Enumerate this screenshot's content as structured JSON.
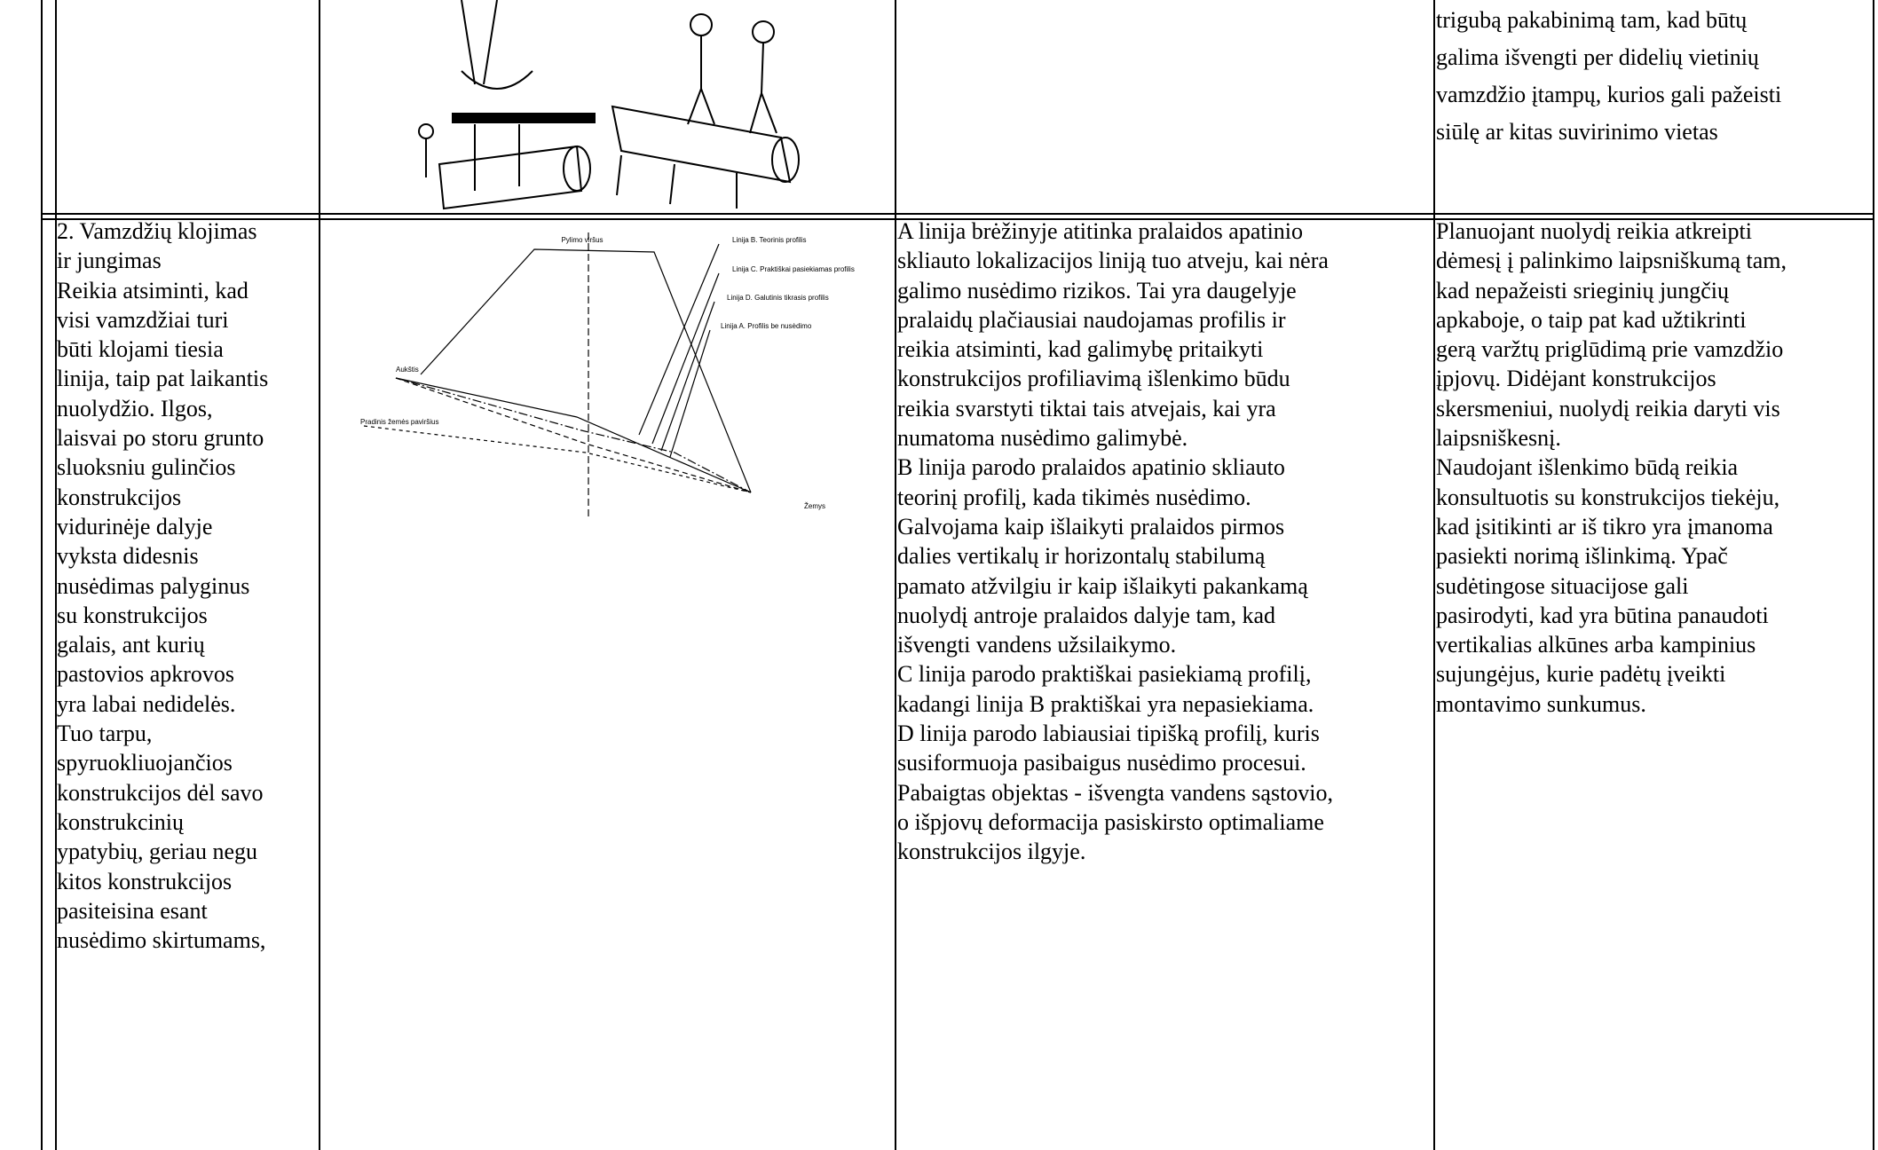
{
  "table": {
    "rows": [
      {
        "notes": [
          "trigubą pakabinimą tam, kad būtų",
          "galima išvengti per didelių vietinių",
          "vamzdžio įtampų, kurios gali pažeisti",
          "siūlę ar kitas suvirinimo vietas"
        ]
      },
      {
        "step": [
          "2. Vamzdžių klojimas",
          "ir jungimas",
          "Reikia atsiminti, kad",
          "visi vamzdžiai turi",
          "būti klojami tiesia",
          "linija, taip pat laikantis",
          "nuolydžio. Ilgos,",
          "laisvai po storu grunto",
          "sluoksniu gulinčios",
          "konstrukcijos",
          "vidurinėje dalyje",
          "vyksta didesnis",
          "nusėdimas palyginus",
          "su konstrukcijos",
          "galais, ant kurių",
          "pastovios apkrovos",
          "yra labai nedidelės.",
          "Tuo tarpu,",
          "spyruokliuojančios",
          "konstrukcijos dėl savo",
          "konstrukcinių",
          "ypatybių, geriau negu",
          "kitos konstrukcijos",
          "pasiteisina esant",
          "nusėdimo skirtumams,"
        ],
        "figure": {
          "labels": [
            "Pylimo viršus",
            "Linija B. Teorinis profilis",
            "Linija C. Praktiškai pasiekiamas profilis",
            "Linija D. Galutinis tikrasis profilis",
            "Linija A. Profilis be nusėdimo",
            "Aukštis",
            "Pradinis žemės paviršius",
            "Žemys"
          ]
        },
        "explanation": [
          "A linija brėžinyje atitinka pralaidos apatinio",
          "skliauto lokalizacijos liniją tuo atveju, kai nėra",
          "galimo nusėdimo rizikos. Tai yra daugelyje",
          "pralaidų plačiausiai naudojamas profilis ir",
          "reikia atsiminti, kad galimybę pritaikyti",
          "konstrukcijos profiliavimą išlenkimo būdu",
          "reikia svarstyti tiktai tais atvejais, kai yra",
          "numatoma nusėdimo galimybė.",
          "B linija parodo pralaidos apatinio skliauto",
          "teorinį profilį, kada tikimės nusėdimo.",
          "Galvojama kaip išlaikyti pralaidos pirmos",
          "dalies vertikalų ir horizontalų stabilumą",
          "pamato atžvilgiu ir kaip išlaikyti pakankamą",
          "nuolydį antroje pralaidos dalyje tam, kad",
          "išvengti vandens užsilaikymo.",
          "C linija parodo praktiškai pasiekiamą profilį,",
          "kadangi linija B praktiškai yra nepasiekiama.",
          "D linija parodo labiausiai tipišką profilį, kuris",
          "susiformuoja pasibaigus nusėdimo procesui.",
          "Pabaigtas objektas - išvengta vandens sąstovio,",
          "o išpjovų deformacija pasiskirsto optimaliame",
          "konstrukcijos ilgyje."
        ],
        "notes": [
          "Planuojant nuolydį reikia atkreipti",
          "dėmesį į palinkimo laipsniškumą tam,",
          "kad nepažeisti srieginių jungčių",
          "apkaboje, o taip pat kad užtikrinti",
          "gerą varžtų priglūdimą prie vamzdžio",
          "įpjovų. Didėjant konstrukcijos",
          "skersmeniui, nuolydį reikia daryti vis",
          "laipsniškesnį.",
          "Naudojant išlenkimo būdą reikia",
          "konsultuotis su konstrukcijos tiekėju,",
          "kad įsitikinti ar iš tikro yra įmanoma",
          "pasiekti norimą išlinkimą. Ypač",
          "sudėtingose situacijose gali",
          "pasirodyti, kad yra būtina panaudoti",
          "vertikalias alkūnes arba kampinius",
          "sujungėjus, kurie padėtų įveikti",
          "montavimo sunkumus."
        ]
      }
    ]
  }
}
